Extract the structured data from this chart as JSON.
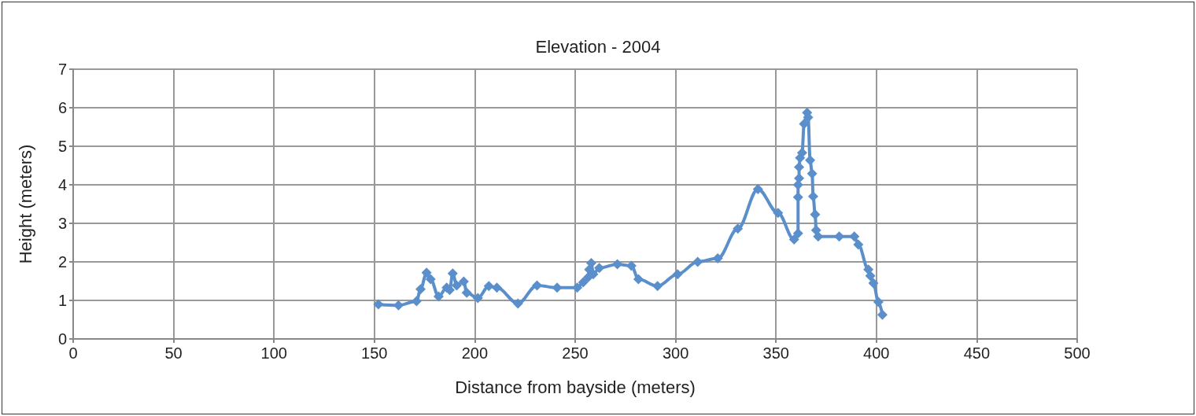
{
  "chart_data": {
    "type": "line",
    "title": "Elevation - 2004",
    "xlabel": "Distance from bayside (meters)",
    "ylabel": "Height (meters)",
    "x": [
      152,
      162,
      171,
      173,
      176,
      178,
      182,
      186,
      187.5,
      189,
      191,
      194.5,
      196,
      201.5,
      207,
      211,
      221.5,
      231,
      241,
      251,
      254,
      256.5,
      257,
      258,
      259,
      262,
      271,
      278,
      281.5,
      291,
      301,
      311,
      321,
      331,
      341,
      351,
      359,
      361,
      361,
      361,
      361.5,
      361.5,
      362,
      363,
      364,
      365.5,
      366,
      367,
      368,
      368.5,
      369.5,
      370,
      371,
      381.5,
      389,
      391,
      396,
      397,
      398.5,
      401,
      403
    ],
    "series": [
      {
        "color": "#5b8fcb",
        "values": [
          0.9,
          0.87,
          0.98,
          1.29,
          1.72,
          1.55,
          1.1,
          1.33,
          1.27,
          1.7,
          1.39,
          1.49,
          1.2,
          1.06,
          1.37,
          1.33,
          0.92,
          1.39,
          1.33,
          1.33,
          1.47,
          1.6,
          1.8,
          1.97,
          1.68,
          1.84,
          1.94,
          1.9,
          1.55,
          1.37,
          1.68,
          2.0,
          2.09,
          2.86,
          3.89,
          3.27,
          2.58,
          2.74,
          3.68,
          4.0,
          4.17,
          4.46,
          4.7,
          4.83,
          5.58,
          5.87,
          5.75,
          4.64,
          4.29,
          3.7,
          3.23,
          2.82,
          2.66,
          2.66,
          2.66,
          2.45,
          1.8,
          1.64,
          1.45,
          0.96,
          0.63
        ]
      }
    ],
    "xlim": [
      0,
      500
    ],
    "xticks": [
      0,
      50,
      100,
      150,
      200,
      250,
      300,
      350,
      400,
      450,
      500
    ],
    "ylim": [
      0,
      7
    ],
    "yticks": [
      0,
      1,
      2,
      3,
      4,
      5,
      6,
      7
    ],
    "grid": true,
    "marker": "diamond",
    "line_style": "solid"
  }
}
